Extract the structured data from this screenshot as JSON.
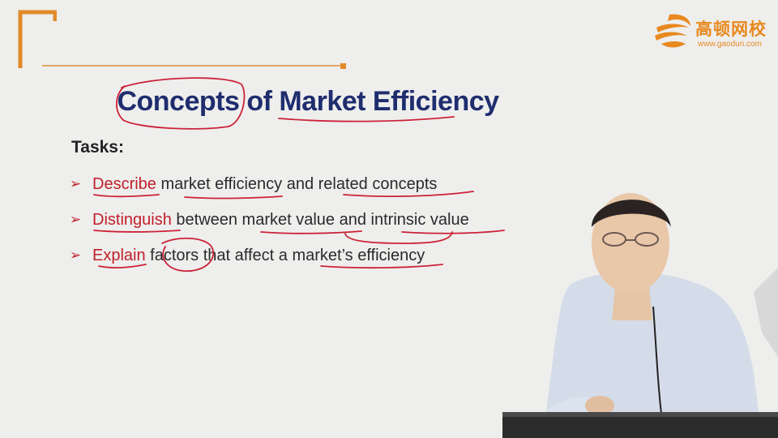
{
  "logo": {
    "name_cn": "高顿网校",
    "url": "www.gaodun.com",
    "color": "#e8891f"
  },
  "slide": {
    "title_part1": "Concepts",
    "title_part2": " of Market Efficiency",
    "title_color": "#1f2d6e",
    "tasks_heading": "Tasks:",
    "tasks": [
      {
        "verb": "Describe",
        "rest": " market efficiency and related concepts"
      },
      {
        "verb": "Distinguish",
        "rest": " between market value and intrinsic value"
      },
      {
        "verb": "Explain",
        "rest": " factors that affect a market’s efficiency"
      }
    ],
    "bullet_glyph": "➢",
    "accent_color": "#c0202a",
    "annotation_color": "#cc2236"
  }
}
